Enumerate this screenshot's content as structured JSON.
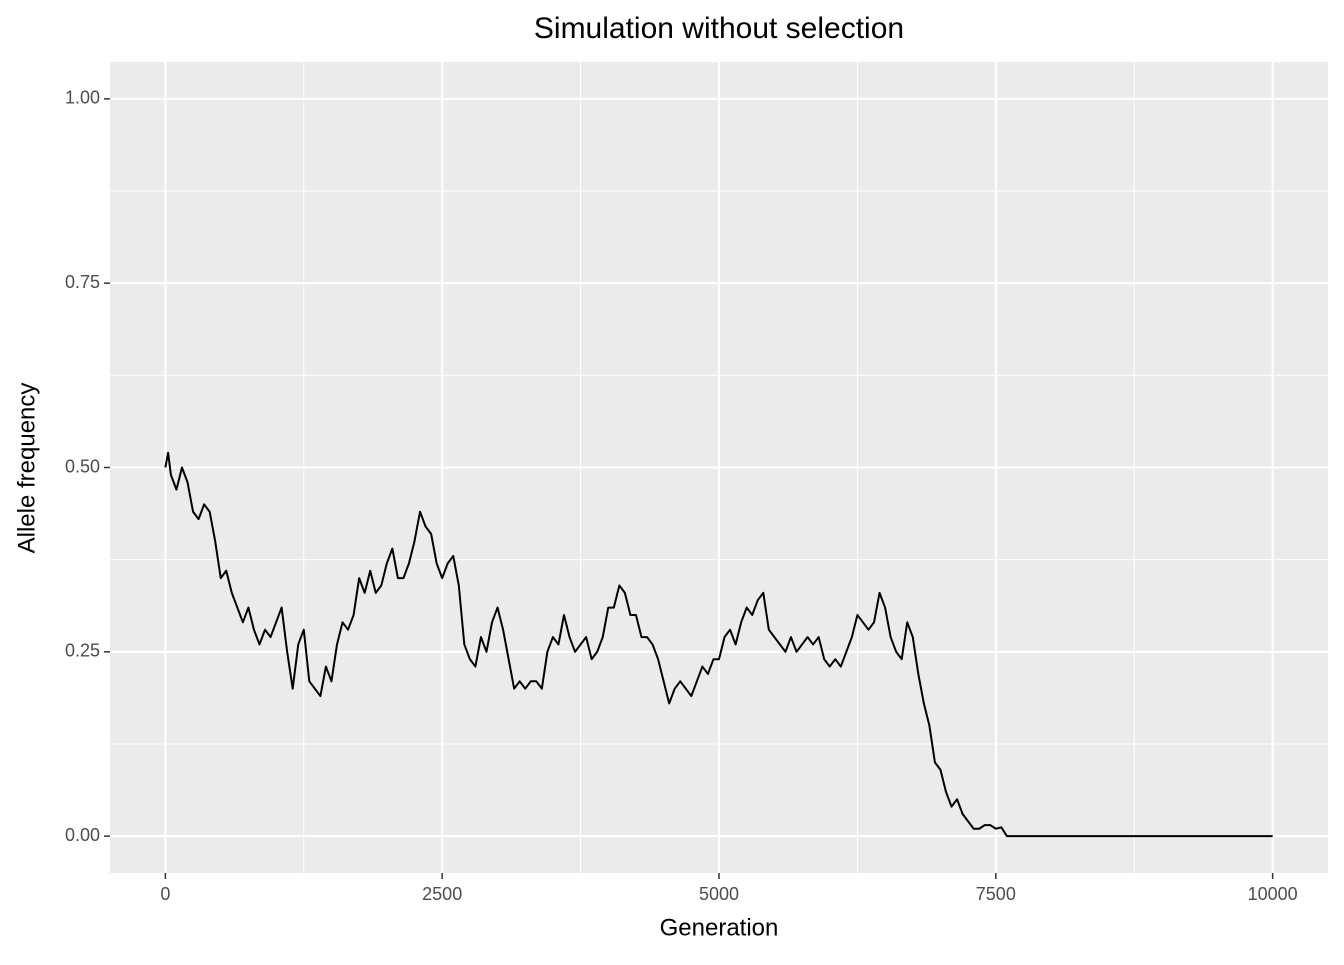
{
  "chart_data": {
    "type": "line",
    "title": "Simulation without selection",
    "x_label": "Generation",
    "y_label": "Allele frequency",
    "x": [
      0,
      25,
      50,
      100,
      150,
      200,
      250,
      300,
      350,
      400,
      450,
      500,
      550,
      600,
      650,
      700,
      750,
      800,
      850,
      900,
      950,
      1000,
      1050,
      1100,
      1150,
      1200,
      1250,
      1300,
      1350,
      1400,
      1450,
      1500,
      1550,
      1600,
      1650,
      1700,
      1750,
      1800,
      1850,
      1900,
      1950,
      2000,
      2050,
      2100,
      2150,
      2200,
      2250,
      2300,
      2350,
      2400,
      2450,
      2500,
      2550,
      2600,
      2650,
      2700,
      2750,
      2800,
      2850,
      2900,
      2950,
      3000,
      3050,
      3100,
      3150,
      3200,
      3250,
      3300,
      3350,
      3400,
      3450,
      3500,
      3550,
      3600,
      3650,
      3700,
      3750,
      3800,
      3850,
      3900,
      3950,
      4000,
      4050,
      4100,
      4150,
      4200,
      4250,
      4300,
      4350,
      4400,
      4450,
      4500,
      4550,
      4600,
      4650,
      4700,
      4750,
      4800,
      4850,
      4900,
      4950,
      5000,
      5050,
      5100,
      5150,
      5200,
      5250,
      5300,
      5350,
      5400,
      5450,
      5500,
      5550,
      5600,
      5650,
      5700,
      5750,
      5800,
      5850,
      5900,
      5950,
      6000,
      6050,
      6100,
      6150,
      6200,
      6250,
      6300,
      6350,
      6400,
      6450,
      6500,
      6550,
      6600,
      6650,
      6700,
      6750,
      6800,
      6850,
      6900,
      6950,
      7000,
      7050,
      7100,
      7150,
      7200,
      7250,
      7300,
      7350,
      7400,
      7450,
      7500,
      7550,
      7600,
      10000
    ],
    "series": [
      {
        "name": "Allele frequency",
        "color": "#000000",
        "values": [
          0.5,
          0.52,
          0.49,
          0.47,
          0.5,
          0.48,
          0.44,
          0.43,
          0.45,
          0.44,
          0.4,
          0.35,
          0.36,
          0.33,
          0.31,
          0.29,
          0.31,
          0.28,
          0.26,
          0.28,
          0.27,
          0.29,
          0.31,
          0.25,
          0.2,
          0.26,
          0.28,
          0.21,
          0.2,
          0.19,
          0.23,
          0.21,
          0.26,
          0.29,
          0.28,
          0.3,
          0.35,
          0.33,
          0.36,
          0.33,
          0.34,
          0.37,
          0.39,
          0.35,
          0.35,
          0.37,
          0.4,
          0.44,
          0.42,
          0.41,
          0.37,
          0.35,
          0.37,
          0.38,
          0.34,
          0.26,
          0.24,
          0.23,
          0.27,
          0.25,
          0.29,
          0.31,
          0.28,
          0.24,
          0.2,
          0.21,
          0.2,
          0.21,
          0.21,
          0.2,
          0.25,
          0.27,
          0.26,
          0.3,
          0.27,
          0.25,
          0.26,
          0.27,
          0.24,
          0.25,
          0.27,
          0.31,
          0.31,
          0.34,
          0.33,
          0.3,
          0.3,
          0.27,
          0.27,
          0.26,
          0.24,
          0.21,
          0.18,
          0.2,
          0.21,
          0.2,
          0.19,
          0.21,
          0.23,
          0.22,
          0.24,
          0.24,
          0.27,
          0.28,
          0.26,
          0.29,
          0.31,
          0.3,
          0.32,
          0.33,
          0.28,
          0.27,
          0.26,
          0.25,
          0.27,
          0.25,
          0.26,
          0.27,
          0.26,
          0.27,
          0.24,
          0.23,
          0.24,
          0.23,
          0.25,
          0.27,
          0.3,
          0.29,
          0.28,
          0.29,
          0.33,
          0.31,
          0.27,
          0.25,
          0.24,
          0.29,
          0.27,
          0.22,
          0.18,
          0.15,
          0.1,
          0.09,
          0.06,
          0.04,
          0.05,
          0.03,
          0.02,
          0.01,
          0.01,
          0.015,
          0.015,
          0.01,
          0.012,
          0,
          0
        ]
      }
    ],
    "xlim": [
      -500,
      10500
    ],
    "xticks": [
      0,
      2500,
      5000,
      7500,
      10000
    ],
    "ylim": [
      -0.05,
      1.05
    ],
    "yticks": [
      {
        "value": 0,
        "label": "0.00"
      },
      {
        "value": 0.25,
        "label": "0.25"
      },
      {
        "value": 0.5,
        "label": "0.50"
      },
      {
        "value": 0.75,
        "label": "0.75"
      },
      {
        "value": 1,
        "label": "1.00"
      }
    ],
    "grid": true
  }
}
